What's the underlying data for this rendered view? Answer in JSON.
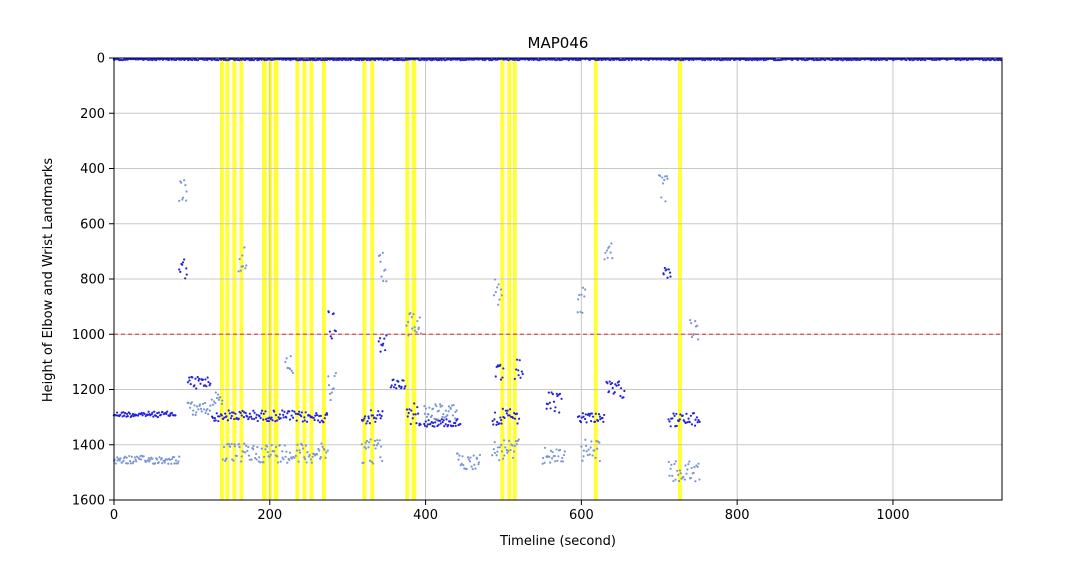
{
  "chart_data": {
    "type": "scatter",
    "title": "MAP046",
    "xlabel": "Timeline (second)",
    "ylabel": "Height of Elbow and Wrist Landmarks",
    "xlim": [
      0,
      1140
    ],
    "ylim": [
      1600,
      0
    ],
    "y_inverted": true,
    "grid": true,
    "x_ticks": [
      0,
      200,
      400,
      600,
      800,
      1000
    ],
    "y_ticks": [
      0,
      200,
      400,
      600,
      800,
      1000,
      1200,
      1400,
      1600
    ],
    "threshold_line": {
      "y": 1000,
      "color": "#d9534f",
      "style": "dashed"
    },
    "highlight_color": "#ffff33",
    "highlight_intervals": [
      [
        136,
        141
      ],
      [
        143,
        148
      ],
      [
        152,
        157
      ],
      [
        161,
        166
      ],
      [
        190,
        196
      ],
      [
        198,
        203
      ],
      [
        205,
        211
      ],
      [
        233,
        238
      ],
      [
        242,
        247
      ],
      [
        251,
        256
      ],
      [
        267,
        272
      ],
      [
        319,
        324
      ],
      [
        329,
        334
      ],
      [
        374,
        379
      ],
      [
        382,
        388
      ],
      [
        496,
        501
      ],
      [
        505,
        510
      ],
      [
        512,
        517
      ],
      [
        616,
        621
      ],
      [
        724,
        729
      ]
    ],
    "series": [
      {
        "color": "#2222dd",
        "segments": [
          {
            "x": [
              0,
              80
            ],
            "y": 1290,
            "jitter": 10
          },
          {
            "x": [
              84,
              94
            ],
            "y": 760,
            "jitter": 40
          },
          {
            "x": [
              95,
              125
            ],
            "y": 1175,
            "jitter": 25
          },
          {
            "x": [
              126,
              140
            ],
            "y": 1300,
            "jitter": 15
          },
          {
            "x": [
              140,
              230
            ],
            "y": 1295,
            "jitter": 20
          },
          {
            "x": [
              232,
              275
            ],
            "y": 1300,
            "jitter": 20
          },
          {
            "x": [
              275,
              285
            ],
            "y": 960,
            "jitter": 60
          },
          {
            "x": [
              318,
              345
            ],
            "y": 1300,
            "jitter": 25
          },
          {
            "x": [
              340,
              350
            ],
            "y": 1030,
            "jitter": 40
          },
          {
            "x": [
              355,
              375
            ],
            "y": 1180,
            "jitter": 20
          },
          {
            "x": [
              376,
              395
            ],
            "y": 1290,
            "jitter": 40
          },
          {
            "x": [
              398,
              445
            ],
            "y": 1320,
            "jitter": 15
          },
          {
            "x": [
              486,
              520
            ],
            "y": 1300,
            "jitter": 30
          },
          {
            "x": [
              490,
              500
            ],
            "y": 1150,
            "jitter": 40
          },
          {
            "x": [
              515,
              525
            ],
            "y": 1130,
            "jitter": 40
          },
          {
            "x": [
              555,
              575
            ],
            "y": 1250,
            "jitter": 40
          },
          {
            "x": [
              596,
              630
            ],
            "y": 1300,
            "jitter": 20
          },
          {
            "x": [
              632,
              655
            ],
            "y": 1200,
            "jitter": 30
          },
          {
            "x": [
              705,
              715
            ],
            "y": 760,
            "jitter": 40
          },
          {
            "x": [
              712,
              752
            ],
            "y": 1310,
            "jitter": 25
          }
        ]
      },
      {
        "color": "#7b96d6",
        "segments": [
          {
            "x": [
              0,
              85
            ],
            "y": 1455,
            "jitter": 15
          },
          {
            "x": [
              84,
              94
            ],
            "y": 480,
            "jitter": 40
          },
          {
            "x": [
              95,
              125
            ],
            "y": 1270,
            "jitter": 25
          },
          {
            "x": [
              126,
              140
            ],
            "y": 1230,
            "jitter": 30
          },
          {
            "x": [
              140,
              230
            ],
            "y": 1430,
            "jitter": 35
          },
          {
            "x": [
              160,
              170
            ],
            "y": 730,
            "jitter": 60
          },
          {
            "x": [
              220,
              230
            ],
            "y": 1100,
            "jitter": 40
          },
          {
            "x": [
              232,
              275
            ],
            "y": 1430,
            "jitter": 35
          },
          {
            "x": [
              275,
              285
            ],
            "y": 1180,
            "jitter": 60
          },
          {
            "x": [
              318,
              345
            ],
            "y": 1420,
            "jitter": 50
          },
          {
            "x": [
              340,
              350
            ],
            "y": 760,
            "jitter": 60
          },
          {
            "x": [
              376,
              395
            ],
            "y": 960,
            "jitter": 50
          },
          {
            "x": [
              398,
              440
            ],
            "y": 1280,
            "jitter": 30
          },
          {
            "x": [
              440,
              470
            ],
            "y": 1460,
            "jitter": 30
          },
          {
            "x": [
              486,
              520
            ],
            "y": 1420,
            "jitter": 40
          },
          {
            "x": [
              488,
              498
            ],
            "y": 850,
            "jitter": 50
          },
          {
            "x": [
              550,
              580
            ],
            "y": 1440,
            "jitter": 30
          },
          {
            "x": [
              595,
              605
            ],
            "y": 880,
            "jitter": 50
          },
          {
            "x": [
              600,
              625
            ],
            "y": 1420,
            "jitter": 40
          },
          {
            "x": [
              630,
              640
            ],
            "y": 700,
            "jitter": 30
          },
          {
            "x": [
              700,
              712
            ],
            "y": 470,
            "jitter": 50
          },
          {
            "x": [
              712,
              752
            ],
            "y": 1500,
            "jitter": 40
          },
          {
            "x": [
              740,
              750
            ],
            "y": 980,
            "jitter": 40
          }
        ]
      },
      {
        "color": "#2222dd",
        "segments": [
          {
            "x": [
              0,
              1140
            ],
            "y": 5,
            "jitter": 3
          }
        ]
      }
    ]
  }
}
